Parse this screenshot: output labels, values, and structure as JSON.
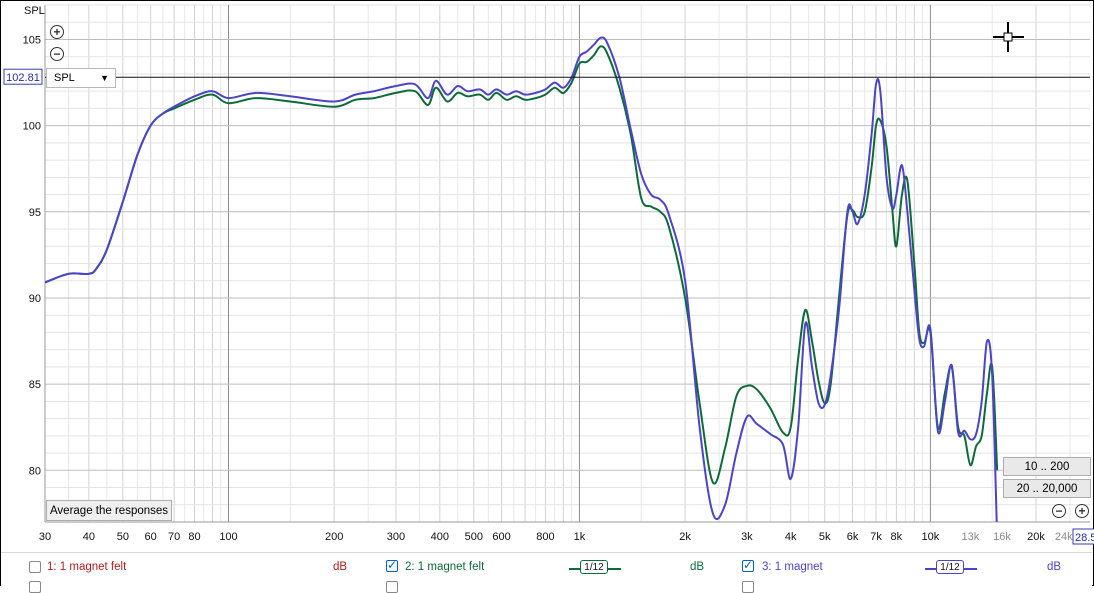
{
  "chart_data": {
    "type": "line",
    "ylabel": "SPL",
    "xscale": "log",
    "xlim": [
      30,
      28500
    ],
    "ylim": [
      77,
      107
    ],
    "yticks": [
      80,
      85,
      90,
      95,
      100,
      105
    ],
    "ytick_labels": [
      "80",
      "85",
      "90",
      "95",
      "100",
      "105"
    ],
    "xticks": [
      30,
      40,
      50,
      60,
      70,
      80,
      100,
      200,
      300,
      400,
      500,
      600,
      800,
      1000,
      2000,
      3000,
      4000,
      5000,
      6000,
      7000,
      8000,
      10000,
      13000,
      16000,
      20000,
      24000
    ],
    "xtick_labels": [
      "30",
      "40",
      "50",
      "60",
      "70",
      "80",
      "100",
      "200",
      "300",
      "400",
      "500",
      "600",
      "800",
      "1k",
      "2k",
      "3k",
      "4k",
      "5k",
      "6k",
      "7k",
      "8k",
      "10k",
      "13k",
      "16k",
      "20k",
      "24k"
    ],
    "x_readout": "28.5",
    "cursor_y": 102.81,
    "cursor_readout": "102.81",
    "grid": true,
    "series": [
      {
        "name": "2: 1 magnet felt",
        "color": "#0d6b3a",
        "x": [
          30,
          35,
          40,
          42,
          45,
          50,
          55,
          60,
          65,
          70,
          80,
          90,
          100,
          120,
          150,
          200,
          230,
          260,
          300,
          340,
          370,
          390,
          420,
          450,
          480,
          520,
          550,
          580,
          620,
          660,
          700,
          750,
          800,
          850,
          900,
          950,
          1000,
          1050,
          1100,
          1150,
          1200,
          1300,
          1400,
          1500,
          1600,
          1700,
          1800,
          2000,
          2200,
          2400,
          2600,
          2800,
          3000,
          3200,
          3500,
          3800,
          4000,
          4200,
          4400,
          4600,
          4800,
          5000,
          5200,
          5500,
          5800,
          6000,
          6200,
          6500,
          6800,
          7000,
          7200,
          7500,
          7800,
          8000,
          8300,
          8600,
          9000,
          9300,
          9600,
          10000,
          10500,
          11000,
          11500,
          12000,
          12500,
          13000,
          13500,
          14000,
          14500,
          15000,
          15500
        ],
        "y": [
          90.9,
          91.4,
          91.4,
          91.7,
          92.8,
          95.6,
          98.3,
          100.0,
          100.7,
          101.0,
          101.5,
          101.8,
          101.3,
          101.6,
          101.4,
          101.1,
          101.5,
          101.6,
          101.9,
          102.0,
          101.2,
          102.2,
          101.4,
          101.9,
          101.7,
          101.8,
          101.5,
          101.9,
          101.5,
          101.7,
          101.5,
          101.6,
          101.8,
          102.2,
          101.9,
          102.5,
          103.6,
          103.7,
          104.1,
          104.6,
          104.2,
          102.2,
          99.5,
          95.8,
          95.3,
          95.0,
          94.1,
          90.0,
          83.9,
          79.3,
          81.3,
          84.3,
          84.9,
          84.7,
          83.6,
          82.2,
          82.5,
          86.5,
          89.3,
          87.5,
          85.2,
          83.9,
          85.0,
          90.2,
          94.8,
          95.1,
          94.7,
          95.0,
          97.6,
          100.0,
          100.3,
          98.8,
          95.0,
          93.0,
          96.0,
          96.8,
          92.0,
          88.0,
          87.4,
          88.0,
          82.5,
          84.5,
          86.0,
          82.5,
          82.0,
          80.3,
          81.4,
          82.0,
          84.5,
          86.0,
          80.0
        ]
      },
      {
        "name": "3: 1 magnet",
        "color": "#4c44c6",
        "x": [
          30,
          35,
          40,
          42,
          45,
          50,
          55,
          60,
          65,
          70,
          80,
          90,
          100,
          120,
          150,
          200,
          230,
          260,
          300,
          340,
          370,
          390,
          420,
          450,
          480,
          520,
          550,
          580,
          620,
          660,
          700,
          750,
          800,
          850,
          900,
          950,
          1000,
          1050,
          1100,
          1150,
          1200,
          1300,
          1400,
          1500,
          1600,
          1700,
          1800,
          2000,
          2200,
          2400,
          2600,
          2800,
          3000,
          3200,
          3500,
          3800,
          4000,
          4200,
          4400,
          4600,
          4800,
          5000,
          5200,
          5500,
          5800,
          6000,
          6200,
          6500,
          6800,
          7000,
          7200,
          7500,
          7800,
          8000,
          8300,
          8600,
          9000,
          9300,
          9600,
          10000,
          10500,
          11000,
          11500,
          12000,
          12500,
          13000,
          13500,
          14000,
          14500,
          15000,
          15500
        ],
        "y": [
          90.9,
          91.4,
          91.4,
          91.7,
          92.8,
          95.6,
          98.3,
          100.0,
          100.7,
          101.1,
          101.7,
          102.0,
          101.6,
          101.9,
          101.7,
          101.4,
          101.8,
          102.0,
          102.3,
          102.4,
          101.6,
          102.6,
          101.8,
          102.3,
          102.0,
          102.1,
          101.8,
          102.1,
          101.8,
          102.0,
          101.8,
          101.9,
          102.1,
          102.5,
          102.2,
          102.8,
          104.0,
          104.3,
          104.7,
          105.1,
          104.8,
          102.8,
          99.8,
          97.2,
          96.0,
          95.7,
          94.8,
          91.0,
          82.5,
          77.5,
          78.0,
          81.0,
          83.1,
          82.7,
          82.1,
          81.5,
          79.5,
          82.5,
          88.5,
          86.0,
          83.9,
          83.8,
          85.5,
          89.5,
          95.0,
          95.0,
          94.3,
          96.0,
          99.5,
          102.4,
          102.0,
          97.0,
          95.2,
          96.0,
          97.7,
          95.0,
          90.5,
          87.6,
          87.2,
          88.2,
          82.3,
          84.0,
          86.1,
          82.2,
          82.3,
          81.8,
          82.1,
          84.0,
          87.5,
          85.5,
          76.0
        ]
      }
    ]
  },
  "controls": {
    "spl_select_value": "SPL",
    "average_button": "Average the responses",
    "range_low_button": "10 .. 200",
    "range_high_button": "20 .. 20,000"
  },
  "legend": [
    {
      "label": "1: 1 magnet felt",
      "color": "#b01d1d",
      "checked": false,
      "unit": "dB"
    },
    {
      "label": "2: 1 magnet felt",
      "color": "#0d6b3a",
      "checked": true,
      "unit": "dB",
      "smoothing": "1/12"
    },
    {
      "label": "3: 1 magnet",
      "color": "#4c44c6",
      "checked": true,
      "unit": "dB",
      "smoothing": "1/12"
    }
  ]
}
